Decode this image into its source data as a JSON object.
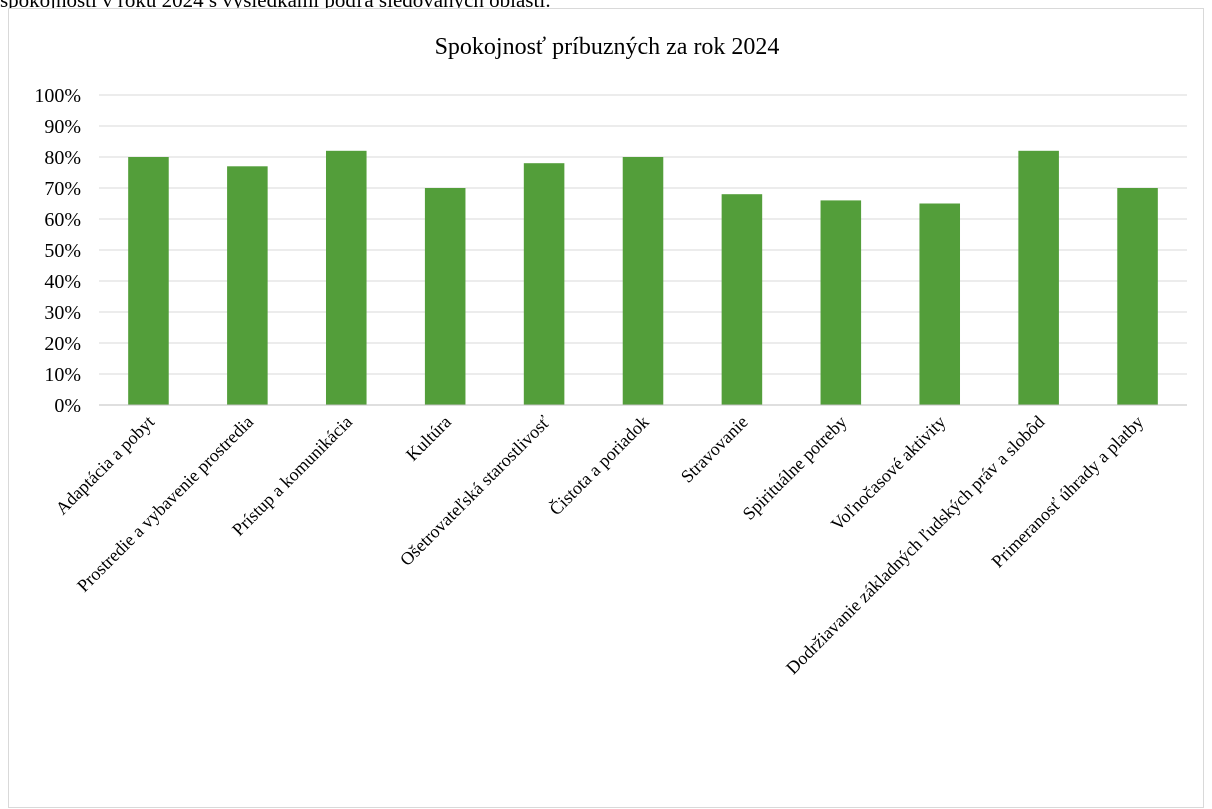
{
  "top_clipped_text": "spokojnosti v roku 2024 s výsledkami podľa sledovaných oblastí:",
  "colors": {
    "bar": "#539E3A",
    "grid": "#D9D9D9",
    "axis": "#BFBFBF",
    "text": "#000000"
  },
  "chart_data": {
    "type": "bar",
    "title": "Spokojnosť príbuzných za rok 2024",
    "xlabel": "",
    "ylabel": "",
    "ylim": [
      0,
      100
    ],
    "yticks": [
      "0%",
      "10%",
      "20%",
      "30%",
      "40%",
      "50%",
      "60%",
      "70%",
      "80%",
      "90%",
      "100%"
    ],
    "grid": true,
    "legend": "none",
    "categories": [
      "Adaptácia a pobyt",
      "Prostredie a vybavenie prostredia",
      "Prístup a komunikácia",
      "Kultúra",
      "Ošetrovateľská starostlivosť",
      "Čistota a poriadok",
      "Stravovanie",
      "Spirituálne potreby",
      "Voľnočasové aktivity",
      "Dodržiavanie základných ľudských práv a slobôd",
      "Primeranosť úhrady a platby"
    ],
    "values": [
      80,
      77,
      82,
      70,
      78,
      80,
      68,
      66,
      65,
      82,
      70
    ]
  }
}
